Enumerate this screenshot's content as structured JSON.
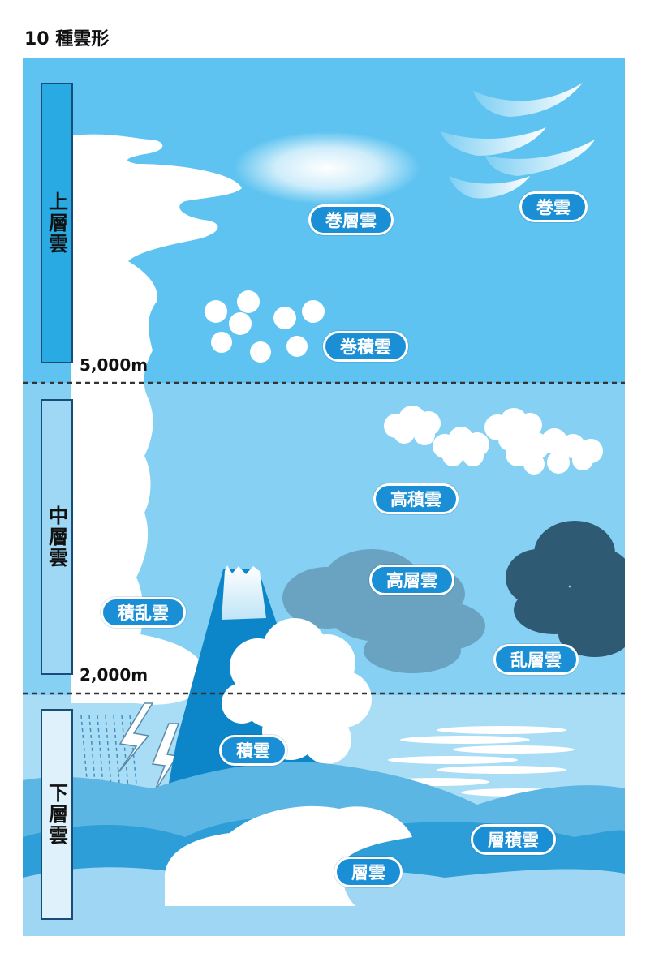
{
  "title": "10 種雲形",
  "bands": [
    {
      "key": "high",
      "label": "上層雲",
      "boundary": "5,000m"
    },
    {
      "key": "mid",
      "label": "中層雲",
      "boundary": "2,000m"
    },
    {
      "key": "low",
      "label": "下層雲",
      "boundary": ""
    }
  ],
  "clouds": {
    "cirrostratus": "巻層雲",
    "cirrus": "巻雲",
    "cirrocumulus": "巻積雲",
    "altocumulus": "高積雲",
    "altostratus": "高層雲",
    "cumulonimbus": "積乱雲",
    "nimbostratus": "乱層雲",
    "cumulus": "積雲",
    "stratocumulus": "層積雲",
    "stratus": "層雲"
  },
  "colors": {
    "sky_top": "#5ec3f0",
    "sky_mid": "#86d1f3",
    "sky_low": "#a9ddf6",
    "label_bg": "#1a8fd6",
    "bar_high": "#2aaae2",
    "bar_mid": "#9fd8f4",
    "bar_low": "#dff2fb",
    "mountain": "#0c86c8",
    "storm": "#3a6a84"
  },
  "icons": [
    "lightning-icon",
    "rain-icon",
    "mountain-icon"
  ]
}
